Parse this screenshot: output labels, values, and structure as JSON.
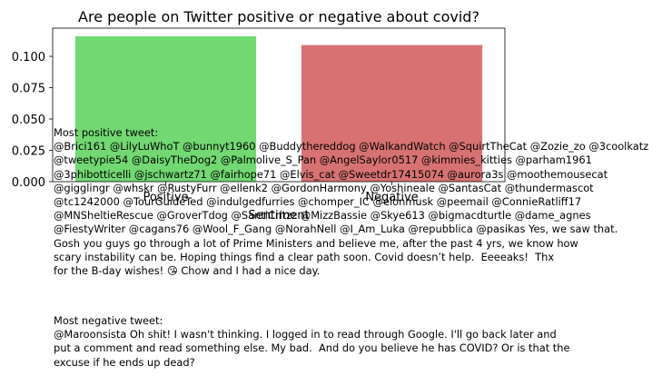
{
  "chart_data": {
    "type": "bar",
    "title": "Are people on Twitter positive or negative about covid?",
    "xlabel": "Sentiment",
    "ylabel": "",
    "categories": [
      "Positive",
      "Negative"
    ],
    "values": [
      0.116,
      0.109
    ],
    "colors": [
      "#72d872",
      "#d87272"
    ],
    "ylim": [
      0,
      0.1225
    ],
    "yticks": [
      0.0,
      0.025,
      0.05,
      0.075,
      0.1
    ],
    "ytick_labels": [
      "0.000",
      "0.025",
      "0.050",
      "0.075",
      "0.100"
    ],
    "grid": false
  },
  "tweets": {
    "positive": "Most positive tweet:\n@Brici161 @LilyLuWhoT @bunnyt1960 @Buddythereddog @WalkandWatch @SquirtTheCat @Zozie_zo @3coolkatz\n@tweetypie54 @DaisyTheDog2 @Palmolive_S_Pan @AngelSaylor0517 @kimmies_kitties @parham1961\n@3phibotticelli @jschwartz71 @fairhope71 @Elvis_cat @Sweetdr17415074 @aurora3s @moothemousecat\n@gigglingr @whskr @RustyFurr @ellenk2 @GordonHarmony @Yoshineale @SantasCat @thundermascot\n@tc1242000 @TourGuideTed @indulgedfurries @chomper_IC @elonmusk @peemail @ConnieRatliff17\n@MNSheltieRescue @GroverTdog @SantiCritzz @MizzBassie @Skye613 @bigmacdturtle @dame_agnes\n@FiestyWriter @cagans76 @Wool_F_Gang @NorahNell @I_Am_Luka @repubblica @pasikas Yes, we saw that.\nGosh you guys go through a lot of Prime Ministers and believe me, after the past 4 yrs, we know how\nscary instability can be. Hoping things find a clear path soon. Covid doesn’t help.  Eeeeaks!  Thx\nfor the B-day wishes! 😘 Chow and I had a nice day.",
    "negative": "Most negative tweet:\n@Maroonsista Oh shit! I wasn't thinking. I logged in to read through Google. I'll go back later and\nput a comment and read something else. My bad.  And do you believe he has COVID? Or is that the\nexcuse if he ends up dead?"
  }
}
